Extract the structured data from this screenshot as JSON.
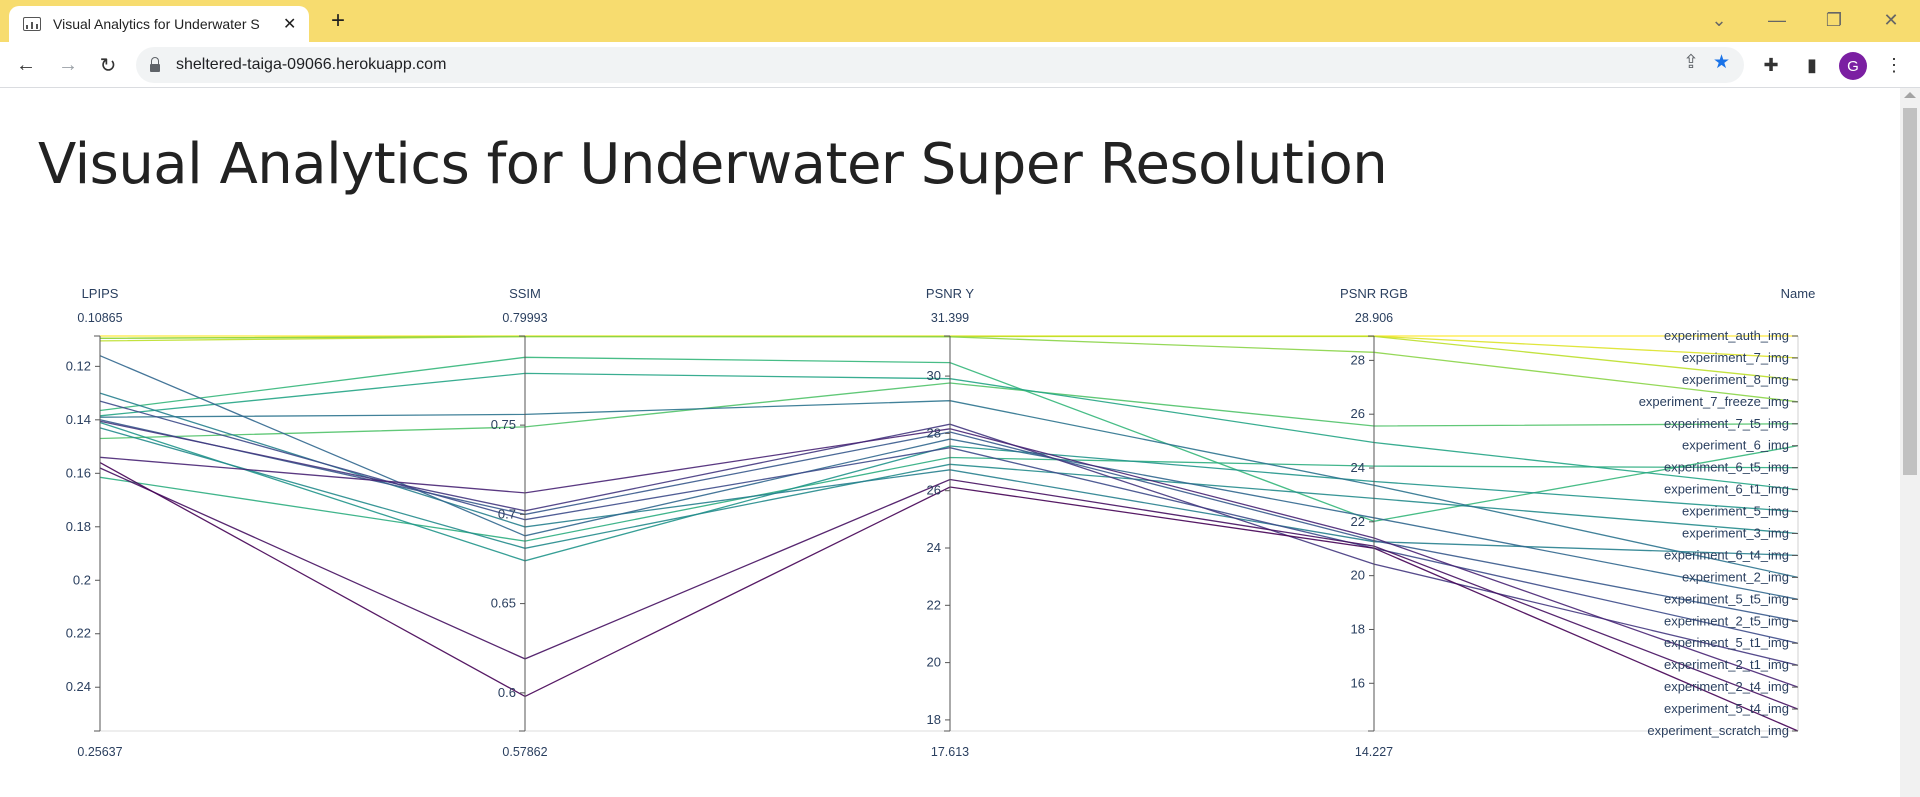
{
  "browser": {
    "tab_title": "Visual Analytics for Underwater S",
    "tab_close": "✕",
    "new_tab": "+",
    "url": "sheltered-taiga-09066.herokuapp.com",
    "avatar_letter": "G",
    "icons": [
      "back-icon",
      "forward-icon",
      "reload-icon",
      "lock-icon",
      "share-icon",
      "star-icon",
      "extensions-icon",
      "sidepanel-icon",
      "menu-icon"
    ]
  },
  "page": {
    "title": "Visual Analytics for Underwater Super Resolution"
  },
  "chart_data": {
    "type": "parallel-coordinates",
    "colorscale": [
      "#440154",
      "#482878",
      "#3e4989",
      "#31688e",
      "#26828e",
      "#1f9e89",
      "#35b779",
      "#6ece58",
      "#b5de2b",
      "#fde725"
    ],
    "dimensions": [
      {
        "label": "LPIPS",
        "range": [
          0.10865,
          0.25637
        ],
        "reversed": true,
        "ticks": [
          0.12,
          0.14,
          0.16,
          0.18,
          0.2,
          0.22,
          0.24
        ],
        "ticktext": [
          "0.12",
          "0.14",
          "0.16",
          "0.18",
          "0.2",
          "0.22",
          "0.24"
        ]
      },
      {
        "label": "SSIM",
        "range": [
          0.57862,
          0.79993
        ],
        "ticks": [
          0.6,
          0.65,
          0.7,
          0.75
        ],
        "ticktext": [
          "0.6",
          "0.65",
          "0.7",
          "0.75"
        ]
      },
      {
        "label": "PSNR Y",
        "range": [
          17.613,
          31.399
        ],
        "ticks": [
          18,
          20,
          22,
          24,
          26,
          28,
          30
        ],
        "ticktext": [
          "18",
          "20",
          "22",
          "24",
          "26",
          "28",
          "30"
        ]
      },
      {
        "label": "PSNR RGB",
        "range": [
          14.227,
          28.906
        ],
        "ticks": [
          16,
          18,
          20,
          22,
          24,
          26,
          28
        ],
        "ticktext": [
          "16",
          "18",
          "20",
          "22",
          "24",
          "26",
          "28"
        ]
      },
      {
        "label": "Name",
        "range": [
          0,
          18
        ]
      }
    ],
    "range_labels": {
      "top": [
        "0.10865",
        "0.79993",
        "31.399",
        "28.906"
      ],
      "bottom": [
        "0.25637",
        "0.57862",
        "17.613",
        "14.227"
      ]
    },
    "names": [
      "experiment_auth_img",
      "experiment_7_img",
      "experiment_8_img",
      "experiment_7_freeze_img",
      "experiment_7_t5_img",
      "experiment_6_img",
      "experiment_6_t5_img",
      "experiment_6_t1_img",
      "experiment_5_img",
      "experiment_3_img",
      "experiment_6_t4_img",
      "experiment_2_img",
      "experiment_5_t5_img",
      "experiment_2_t5_img",
      "experiment_5_t1_img",
      "experiment_2_t1_img",
      "experiment_2_t4_img",
      "experiment_5_t4_img",
      "experiment_scratch_img"
    ],
    "rows": [
      {
        "name": "experiment_auth_img",
        "values": [
          0.10865,
          0.79993,
          31.399,
          28.906
        ],
        "color": 1.0
      },
      {
        "name": "experiment_7_img",
        "values": [
          0.1095,
          0.7999,
          31.39,
          28.9
        ],
        "color": 0.95
      },
      {
        "name": "experiment_8_img",
        "values": [
          0.1105,
          0.7996,
          31.38,
          28.89
        ],
        "color": 0.9
      },
      {
        "name": "experiment_7_freeze_img",
        "values": [
          0.1095,
          0.7996,
          31.37,
          28.3
        ],
        "color": 0.82
      },
      {
        "name": "experiment_7_t5_img",
        "values": [
          0.147,
          0.749,
          29.76,
          25.56
        ],
        "color": 0.72
      },
      {
        "name": "experiment_6_img",
        "values": [
          0.1365,
          0.788,
          30.47,
          22.02
        ],
        "color": 0.66
      },
      {
        "name": "experiment_6_t5_img",
        "values": [
          0.1615,
          0.685,
          27.16,
          24.07
        ],
        "color": 0.62
      },
      {
        "name": "experiment_6_t1_img",
        "values": [
          0.1385,
          0.779,
          29.91,
          24.95
        ],
        "color": 0.58
      },
      {
        "name": "experiment_5_img",
        "values": [
          0.141,
          0.674,
          27.56,
          23.5
        ],
        "color": 0.52
      },
      {
        "name": "experiment_3_img",
        "values": [
          0.143,
          0.681,
          26.92,
          22.87
        ],
        "color": 0.48
      },
      {
        "name": "experiment_6_t4_img",
        "values": [
          0.13,
          0.693,
          26.73,
          21.26
        ],
        "color": 0.43
      },
      {
        "name": "experiment_2_img",
        "values": [
          0.139,
          0.756,
          29.14,
          23.36
        ],
        "color": 0.38
      },
      {
        "name": "experiment_5_t5_img",
        "values": [
          0.116,
          0.688,
          27.8,
          22.15
        ],
        "color": 0.33
      },
      {
        "name": "experiment_2_t5_img",
        "values": [
          0.14,
          0.7,
          28.05,
          21.3
        ],
        "color": 0.28
      },
      {
        "name": "experiment_5_t1_img",
        "values": [
          0.133,
          0.697,
          27.5,
          21.02
        ],
        "color": 0.23
      },
      {
        "name": "experiment_2_t1_img",
        "values": [
          0.1405,
          0.702,
          28.32,
          20.43
        ],
        "color": 0.16
      },
      {
        "name": "experiment_2_t4_img",
        "values": [
          0.154,
          0.712,
          28.16,
          21.4
        ],
        "color": 0.1
      },
      {
        "name": "experiment_5_t4_img",
        "values": [
          0.158,
          0.619,
          26.39,
          21.1
        ],
        "color": 0.04
      },
      {
        "name": "experiment_scratch_img",
        "values": [
          0.156,
          0.598,
          26.13,
          21.02
        ],
        "color": 0.0
      }
    ]
  }
}
